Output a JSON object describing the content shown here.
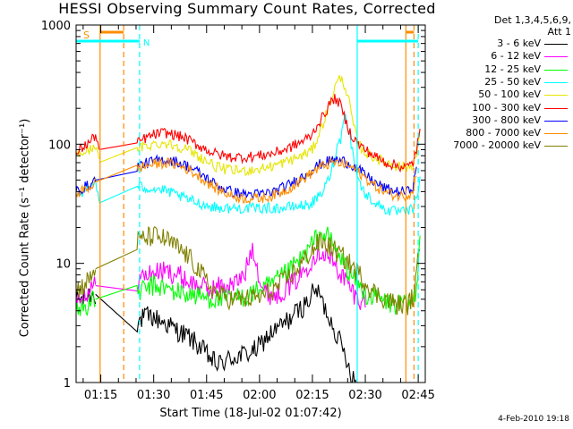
{
  "chart_data": {
    "type": "line",
    "title": "HESSI Observing Summary Count Rates, Corrected",
    "xlabel": "Start Time (18-Jul-02 01:07:42)",
    "ylabel": "Corrected Count Rate (s⁻¹ detector⁻¹)",
    "yscale": "log",
    "ylim": [
      1,
      1000
    ],
    "xlim_minutes": [
      68,
      167
    ],
    "x_ticks": [
      {
        "minutes": 75,
        "label": "01:15"
      },
      {
        "minutes": 90,
        "label": "01:30"
      },
      {
        "minutes": 105,
        "label": "01:45"
      },
      {
        "minutes": 120,
        "label": "02:00"
      },
      {
        "minutes": 135,
        "label": "02:15"
      },
      {
        "minutes": 150,
        "label": "02:30"
      },
      {
        "minutes": 165,
        "label": "02:45"
      }
    ],
    "y_ticks": [
      {
        "value": 1,
        "label": "1"
      },
      {
        "value": 10,
        "label": "10"
      },
      {
        "value": 100,
        "label": "100"
      },
      {
        "value": 1000,
        "label": "1000"
      }
    ],
    "legend_header": [
      "Det 1,3,4,5,6,9,",
      "Att 1"
    ],
    "legend_position": "right",
    "series": [
      {
        "name": "3 - 6 keV",
        "color": "#000000",
        "x": [
          68,
          70,
          72,
          73.5,
          85,
          86,
          88,
          90,
          93,
          96,
          100,
          103,
          106,
          108,
          110,
          112,
          115,
          118,
          120,
          122,
          125,
          128,
          131,
          133,
          134,
          135,
          136,
          137,
          138,
          139,
          140,
          141,
          142,
          143,
          144,
          145,
          146,
          147.5
        ],
        "y": [
          5,
          5,
          5.5,
          5.5,
          3,
          3.3,
          3.6,
          3.5,
          3.2,
          2.8,
          2.4,
          2,
          1.6,
          1.4,
          1.5,
          1.6,
          1.7,
          1.8,
          2,
          2.4,
          2.8,
          3.3,
          4,
          4.5,
          5,
          5.5,
          6,
          5.5,
          4.5,
          4,
          3.4,
          3,
          2.5,
          2.1,
          1.8,
          1.5,
          1.2,
          1
        ]
      },
      {
        "name": "6 - 12 keV",
        "color": "#ff00ff",
        "x": [
          68,
          70,
          72,
          73.5,
          85,
          86,
          88,
          91,
          94,
          97,
          100,
          103,
          106,
          109,
          112,
          115,
          116,
          117,
          118,
          119,
          120,
          121,
          123,
          125,
          127,
          130,
          133,
          135,
          136,
          137,
          138,
          140,
          142,
          144,
          146,
          148,
          150
        ],
        "y": [
          5,
          5.5,
          6,
          6.5,
          7,
          7.5,
          8,
          8.5,
          8.5,
          8,
          7,
          6.5,
          6,
          6.5,
          6.5,
          7.5,
          8.5,
          11,
          14,
          11,
          7.5,
          6,
          5.5,
          5.5,
          6,
          7,
          9,
          11,
          12,
          13,
          12.5,
          11,
          9,
          7.5,
          6,
          5,
          5
        ]
      },
      {
        "name": "12 - 25 keV",
        "color": "#00ff00",
        "x": [
          68,
          70,
          72,
          73.5,
          85,
          87,
          90,
          93,
          96,
          100,
          104,
          108,
          112,
          116,
          118,
          120,
          123,
          126,
          130,
          133,
          136,
          137,
          138,
          139,
          140,
          141,
          142,
          144,
          146,
          148,
          150,
          154,
          158,
          161,
          163,
          164.5,
          165.5
        ],
        "y": [
          4,
          4.3,
          4.6,
          5,
          5.5,
          6,
          6.5,
          6.2,
          5.8,
          5.5,
          5.2,
          5,
          5,
          5.3,
          5.6,
          6,
          6.5,
          7.5,
          9.5,
          12,
          16,
          17,
          18,
          17,
          16,
          14,
          12,
          10,
          8,
          6.5,
          5.5,
          5,
          4.5,
          4.5,
          4.5,
          6,
          20
        ]
      },
      {
        "name": "25 - 50 keV",
        "color": "#00ffff",
        "x": [
          68,
          70,
          72,
          73.5,
          74.5,
          85,
          86,
          88,
          91,
          94,
          97,
          100,
          103,
          106,
          110,
          114,
          118,
          122,
          126,
          130,
          134,
          136,
          138,
          140,
          141,
          142,
          143,
          144,
          145,
          146,
          147,
          148,
          150,
          153,
          156,
          159,
          162,
          163.5,
          164.5,
          165.5
        ],
        "y": [
          38,
          40,
          44,
          50,
          32,
          45,
          44,
          43,
          42,
          40,
          37,
          34,
          32,
          30,
          29,
          29,
          29,
          29,
          29,
          30,
          31,
          34,
          40,
          55,
          70,
          95,
          110,
          180,
          150,
          100,
          70,
          50,
          38,
          32,
          28,
          27,
          27,
          29,
          35,
          50
        ]
      },
      {
        "name": "50 - 100 keV",
        "color": "#e6e600",
        "x": [
          68,
          70,
          72,
          73.5,
          74.5,
          85,
          87,
          90,
          93,
          96,
          99,
          102,
          105,
          108,
          112,
          116,
          120,
          124,
          128,
          132,
          135,
          136,
          138,
          140,
          141,
          142,
          143,
          144,
          145,
          146,
          147,
          148,
          150,
          153,
          156,
          159,
          162,
          163.5,
          164.5,
          165.5
        ],
        "y": [
          80,
          85,
          90,
          100,
          70,
          90,
          95,
          100,
          102,
          98,
          92,
          82,
          72,
          64,
          60,
          60,
          62,
          66,
          72,
          80,
          90,
          105,
          150,
          220,
          280,
          330,
          360,
          320,
          260,
          180,
          130,
          100,
          85,
          76,
          70,
          66,
          64,
          68,
          80,
          120
        ]
      },
      {
        "name": "100 - 300 keV",
        "color": "#ff0000",
        "x": [
          68,
          70,
          72,
          73.5,
          74.5,
          85,
          87,
          90,
          93,
          96,
          99,
          102,
          105,
          108,
          112,
          116,
          120,
          124,
          128,
          132,
          135,
          136,
          138,
          140,
          141,
          142,
          143,
          144,
          145,
          146,
          148,
          150,
          153,
          156,
          159,
          162,
          163.5,
          164.5,
          165.5
        ],
        "y": [
          85,
          95,
          105,
          120,
          90,
          100,
          110,
          120,
          125,
          120,
          112,
          100,
          90,
          82,
          78,
          78,
          80,
          84,
          92,
          105,
          120,
          140,
          170,
          220,
          240,
          235,
          210,
          170,
          140,
          120,
          100,
          90,
          78,
          70,
          66,
          64,
          70,
          90,
          130
        ]
      },
      {
        "name": "300 - 800 keV",
        "color": "#0000ff",
        "x": [
          68,
          70,
          72,
          73.5,
          85,
          87,
          90,
          93,
          96,
          99,
          102,
          105,
          108,
          112,
          116,
          120,
          124,
          128,
          132,
          135,
          138,
          141,
          144,
          147,
          150,
          153,
          156,
          159,
          162,
          163.5,
          164.5
        ],
        "y": [
          40,
          43,
          46,
          50,
          65,
          68,
          72,
          74,
          72,
          67,
          60,
          52,
          45,
          40,
          38,
          38,
          40,
          45,
          53,
          62,
          70,
          74,
          72,
          65,
          55,
          47,
          42,
          40,
          40,
          45,
          60
        ]
      },
      {
        "name": "800 - 7000 keV",
        "color": "#ff8c00",
        "x": [
          68,
          70,
          72,
          73.5,
          85,
          87,
          90,
          93,
          96,
          99,
          102,
          105,
          108,
          112,
          116,
          120,
          124,
          128,
          132,
          135,
          138,
          141,
          144,
          147,
          150,
          153,
          156,
          159,
          162,
          163.5,
          164.5
        ],
        "y": [
          38,
          41,
          44,
          48,
          62,
          65,
          68,
          70,
          68,
          63,
          56,
          48,
          42,
          37,
          35,
          35,
          37,
          42,
          50,
          58,
          66,
          70,
          68,
          62,
          52,
          44,
          39,
          37,
          37,
          42,
          55
        ]
      },
      {
        "name": "7000 - 20000 keV",
        "color": "#808000",
        "x": [
          68,
          70,
          72,
          73.5,
          85,
          87,
          90,
          93,
          96,
          99,
          102,
          105,
          108,
          112,
          116,
          120,
          124,
          128,
          132,
          135,
          137,
          139,
          141,
          144,
          147,
          150,
          153,
          156,
          159,
          162,
          164,
          165.5
        ],
        "y": [
          6,
          6.5,
          7.5,
          9,
          15,
          16,
          17,
          16,
          14,
          12,
          9.5,
          7,
          5.5,
          5,
          5,
          5.2,
          6,
          7.5,
          10,
          13,
          15,
          14.5,
          13,
          11,
          9,
          7,
          5.5,
          5,
          4.5,
          4.5,
          5.5,
          15
        ]
      }
    ],
    "annotations": {
      "saa_label": "S",
      "night_label": "N",
      "vertical_markers": [
        {
          "minutes": 74.8,
          "color": "#ff8c00",
          "style": "solid"
        },
        {
          "minutes": 81.5,
          "color": "#ff8c00",
          "style": "dashed"
        },
        {
          "minutes": 86.0,
          "color": "#00ffff",
          "style": "dashed"
        },
        {
          "minutes": 147.7,
          "color": "#00ffff",
          "style": "solid"
        },
        {
          "minutes": 161.5,
          "color": "#ff8c00",
          "style": "solid"
        },
        {
          "minutes": 163.8,
          "color": "#ff8c00",
          "style": "dashed"
        },
        {
          "minutes": 165.0,
          "color": "#00ffff",
          "style": "dashed"
        }
      ],
      "bars": [
        {
          "x_start": 68,
          "x_end": 86.0,
          "color": "#00ffff",
          "level": 0.955
        },
        {
          "x_start": 147.7,
          "x_end": 165.0,
          "color": "#00ffff",
          "level": 0.955
        },
        {
          "x_start": 74.8,
          "x_end": 81.5,
          "color": "#ff8c00",
          "level": 0.98
        },
        {
          "x_start": 161.5,
          "x_end": 163.8,
          "color": "#ff8c00",
          "level": 0.98
        }
      ]
    },
    "grid": false
  },
  "footer_timestamp": "4-Feb-2010 19:18"
}
